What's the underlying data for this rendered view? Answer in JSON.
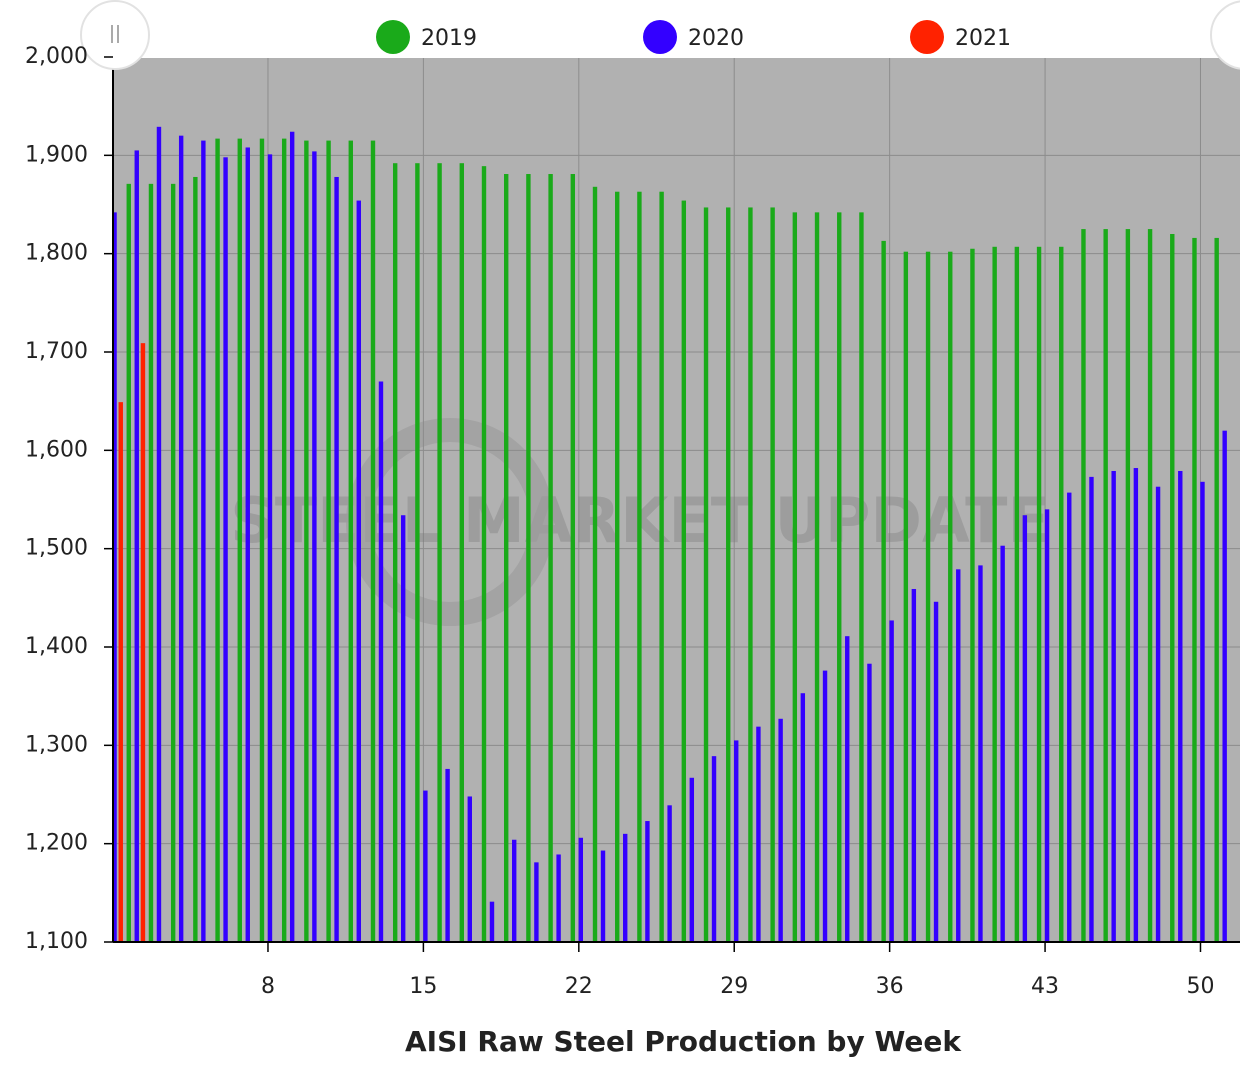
{
  "chart_data": {
    "type": "bar",
    "title": "AISI Raw Steel Production by Week",
    "watermark": "STEEL MARKET UPDATE",
    "x": [
      1,
      2,
      3,
      4,
      5,
      6,
      7,
      8,
      9,
      10,
      11,
      12,
      13,
      14,
      15,
      16,
      17,
      18,
      19,
      20,
      21,
      22,
      23,
      24,
      25,
      26,
      27,
      28,
      29,
      30,
      31,
      32,
      33,
      34,
      35,
      36,
      37,
      38,
      39,
      40,
      41,
      42,
      43,
      44,
      45,
      46,
      47,
      48,
      49,
      50,
      51
    ],
    "series": [
      {
        "name": "2019",
        "color": "#1aaa1a",
        "values": [
          null,
          1871,
          1871,
          1871,
          1878,
          1917,
          1917,
          1917,
          1917,
          1915,
          1915,
          1915,
          1915,
          1892,
          1892,
          1892,
          1892,
          1889,
          1881,
          1881,
          1881,
          1881,
          1868,
          1863,
          1863,
          1863,
          1854,
          1847,
          1847,
          1847,
          1847,
          1842,
          1842,
          1842,
          1842,
          1813,
          1802,
          1802,
          1802,
          1805,
          1807,
          1807,
          1807,
          1807,
          1825,
          1825,
          1825,
          1825,
          1820,
          1816,
          1816
        ]
      },
      {
        "name": "2020",
        "color": "#3300ff",
        "values": [
          1842,
          1905,
          1929,
          1920,
          1915,
          1898,
          1908,
          1901,
          1924,
          1904,
          1878,
          1854,
          1670,
          1534,
          1254,
          1276,
          1248,
          1141,
          1204,
          1181,
          1189,
          1206,
          1193,
          1210,
          1223,
          1239,
          1267,
          1289,
          1305,
          1319,
          1327,
          1353,
          1376,
          1411,
          1383,
          1427,
          1459,
          1446,
          1479,
          1483,
          1503,
          1534,
          1540,
          1557,
          1573,
          1579,
          1582,
          1563,
          1579,
          1568,
          1620
        ]
      },
      {
        "name": "2021",
        "color": "#ff2200",
        "values": [
          null,
          1649,
          1709,
          null,
          null,
          null,
          null,
          null,
          null,
          null,
          null,
          null,
          null,
          null,
          null,
          null,
          null,
          null,
          null,
          null,
          null,
          null,
          null,
          null,
          null,
          null,
          null,
          null,
          null,
          null,
          null,
          null,
          null,
          null,
          null,
          null,
          null,
          null,
          null,
          null,
          null,
          null,
          null,
          null,
          null,
          null,
          null,
          null,
          null,
          null,
          null
        ]
      }
    ],
    "xlim": [
      1.02,
      51.78
    ],
    "xticks": [
      8,
      15,
      22,
      29,
      36,
      43,
      50
    ],
    "ylim": [
      1100,
      2000
    ],
    "yticks": [
      {
        "value": 1100,
        "label": "1,100"
      },
      {
        "value": 1200,
        "label": "1,200"
      },
      {
        "value": 1300,
        "label": "1,300"
      },
      {
        "value": 1400,
        "label": "1,400"
      },
      {
        "value": 1500,
        "label": "1,500"
      },
      {
        "value": 1600,
        "label": "1,600"
      },
      {
        "value": 1700,
        "label": "1,700"
      },
      {
        "value": 1800,
        "label": "1,800"
      },
      {
        "value": 1900,
        "label": "1,900"
      },
      {
        "value": 2000,
        "label": "2,000"
      }
    ],
    "grid": true,
    "legend": "top"
  }
}
